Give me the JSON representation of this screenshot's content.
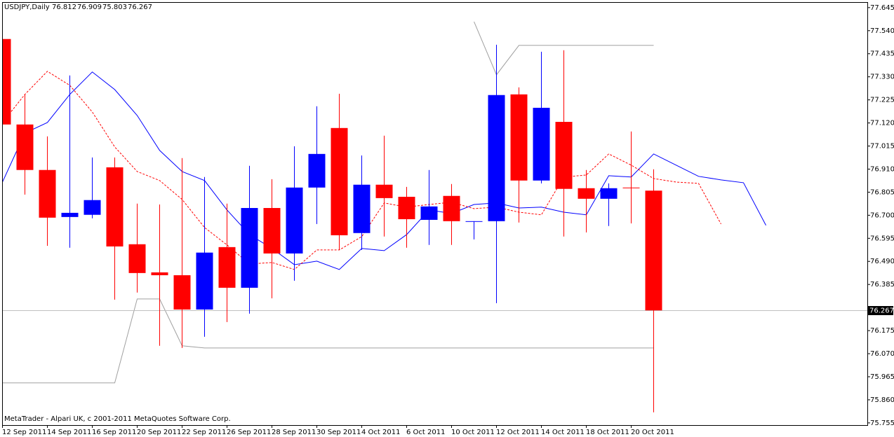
{
  "chart_data": {
    "type": "candlestick",
    "title": "USDJPY,Daily",
    "annotation": "MetaTrader - Alpari UK, c 2001-2011 MetaQuotes Software Corp.",
    "categories": [
      "12 Sep 2011",
      null,
      "14 Sep 2011",
      null,
      "16 Sep 2011",
      null,
      "20 Sep 2011",
      null,
      "22 Sep 2011",
      null,
      "26 Sep 2011",
      null,
      "28 Sep 2011",
      null,
      "30 Sep 2011",
      null,
      "4 Oct 2011",
      null,
      "6 Oct 2011",
      null,
      "10 Oct 2011",
      null,
      "12 Oct 2011",
      null,
      "14 Oct 2011",
      null,
      "18 Oct 2011",
      null,
      "20 Oct 2011",
      null,
      null,
      null,
      null,
      null,
      null
    ],
    "open": [
      77.502,
      77.113,
      76.906,
      76.692,
      76.702,
      76.918,
      76.568,
      76.44,
      76.427,
      76.271,
      76.555,
      76.37,
      76.733,
      76.526,
      76.826,
      77.097,
      76.619,
      76.839,
      76.784,
      76.679,
      76.788,
      76.67,
      76.673,
      77.25,
      76.858,
      77.125,
      76.823,
      76.775,
      76.826,
      76.812,
      null,
      null,
      null,
      null,
      null
    ],
    "high": [
      77.575,
      77.25,
      77.059,
      77.336,
      76.963,
      76.963,
      76.753,
      76.749,
      76.96,
      76.874,
      76.753,
      76.925,
      76.864,
      77.014,
      77.196,
      77.253,
      76.972,
      77.062,
      76.829,
      76.906,
      76.842,
      76.673,
      77.476,
      77.282,
      77.444,
      77.451,
      76.906,
      76.845,
      77.081,
      76.909,
      null,
      null,
      null,
      null,
      null
    ],
    "low": [
      76.746,
      76.794,
      76.561,
      76.552,
      76.686,
      76.316,
      76.348,
      76.106,
      76.096,
      76.147,
      76.214,
      76.252,
      76.322,
      76.402,
      76.66,
      76.542,
      76.542,
      76.603,
      76.552,
      76.565,
      76.565,
      76.59,
      76.3,
      76.667,
      76.845,
      76.603,
      76.622,
      76.651,
      76.663,
      75.803,
      null,
      null,
      null,
      null,
      null
    ],
    "close": [
      77.113,
      76.906,
      76.689,
      76.711,
      76.769,
      76.558,
      76.437,
      76.427,
      76.271,
      76.53,
      76.37,
      76.733,
      76.526,
      76.826,
      76.979,
      76.609,
      76.839,
      76.778,
      76.682,
      76.74,
      76.673,
      76.673,
      77.247,
      76.858,
      77.189,
      76.82,
      76.775,
      76.823,
      76.825,
      76.267,
      null,
      null,
      null,
      null,
      null
    ],
    "up_color": "#0000ff",
    "down_color": "#ff0000",
    "lines": [
      {
        "color": "#0000ff",
        "style": "solid",
        "values": [
          76.851,
          77.074,
          77.122,
          77.25,
          77.352,
          77.272,
          77.154,
          76.995,
          76.899,
          76.858,
          76.724,
          76.612,
          76.549,
          76.475,
          76.491,
          76.453,
          76.549,
          76.539,
          76.612,
          76.724,
          76.708,
          76.749,
          76.756,
          76.733,
          76.737,
          76.714,
          76.702,
          76.88,
          76.874,
          76.979,
          76.928,
          76.877,
          76.861,
          76.848,
          76.654
        ]
      },
      {
        "color": "#ff0000",
        "style": "dashed",
        "values": [
          77.122,
          77.25,
          77.355,
          77.291,
          77.17,
          77.011,
          76.899,
          76.858,
          76.772,
          76.644,
          76.565,
          76.478,
          76.485,
          76.453,
          76.542,
          76.542,
          76.603,
          76.756,
          76.737,
          76.749,
          76.759,
          76.73,
          76.737,
          76.714,
          76.702,
          76.874,
          76.883,
          76.979,
          76.928,
          76.867,
          76.851,
          76.845,
          76.66,
          null,
          null
        ]
      },
      {
        "color": "#a0a0a0",
        "style": "solid",
        "values": [
          75.937,
          75.937,
          75.937,
          75.937,
          75.937,
          75.937,
          76.319,
          76.319,
          76.106,
          76.096,
          76.096,
          76.096,
          76.096,
          76.096,
          76.096,
          76.096,
          76.096,
          76.096,
          76.096,
          76.096,
          76.096,
          76.096,
          76.096,
          76.096,
          76.096,
          76.096,
          76.096,
          76.096,
          76.096,
          76.096,
          null,
          null,
          null,
          null,
          null
        ]
      },
      {
        "color": "#a0a0a0",
        "style": "solid",
        "values": [
          null,
          null,
          null,
          null,
          null,
          null,
          null,
          null,
          null,
          null,
          null,
          null,
          null,
          null,
          null,
          null,
          null,
          null,
          null,
          null,
          null,
          77.581,
          77.339,
          77.473,
          77.473,
          77.473,
          77.473,
          77.473,
          77.473,
          77.473,
          null,
          null,
          null,
          null,
          null
        ]
      }
    ],
    "ylim": [
      75.745,
      77.67
    ],
    "yticks": [
      77.645,
      {
        "value": 77.54,
        "label": "77.540"
      },
      77.435,
      {
        "value": 77.33,
        "label": "77.330"
      },
      77.225,
      {
        "value": 77.12,
        "label": "77.120"
      },
      77.015,
      {
        "value": 76.91,
        "label": "76.910"
      },
      76.805,
      {
        "value": 76.7,
        "label": "76.700"
      },
      76.595,
      {
        "value": 76.49,
        "label": "76.490"
      },
      76.385,
      76.175,
      {
        "value": 76.07,
        "label": "76.070"
      },
      75.965,
      {
        "value": 75.86,
        "label": "75.860"
      },
      75.755
    ],
    "grid": false
  }
}
